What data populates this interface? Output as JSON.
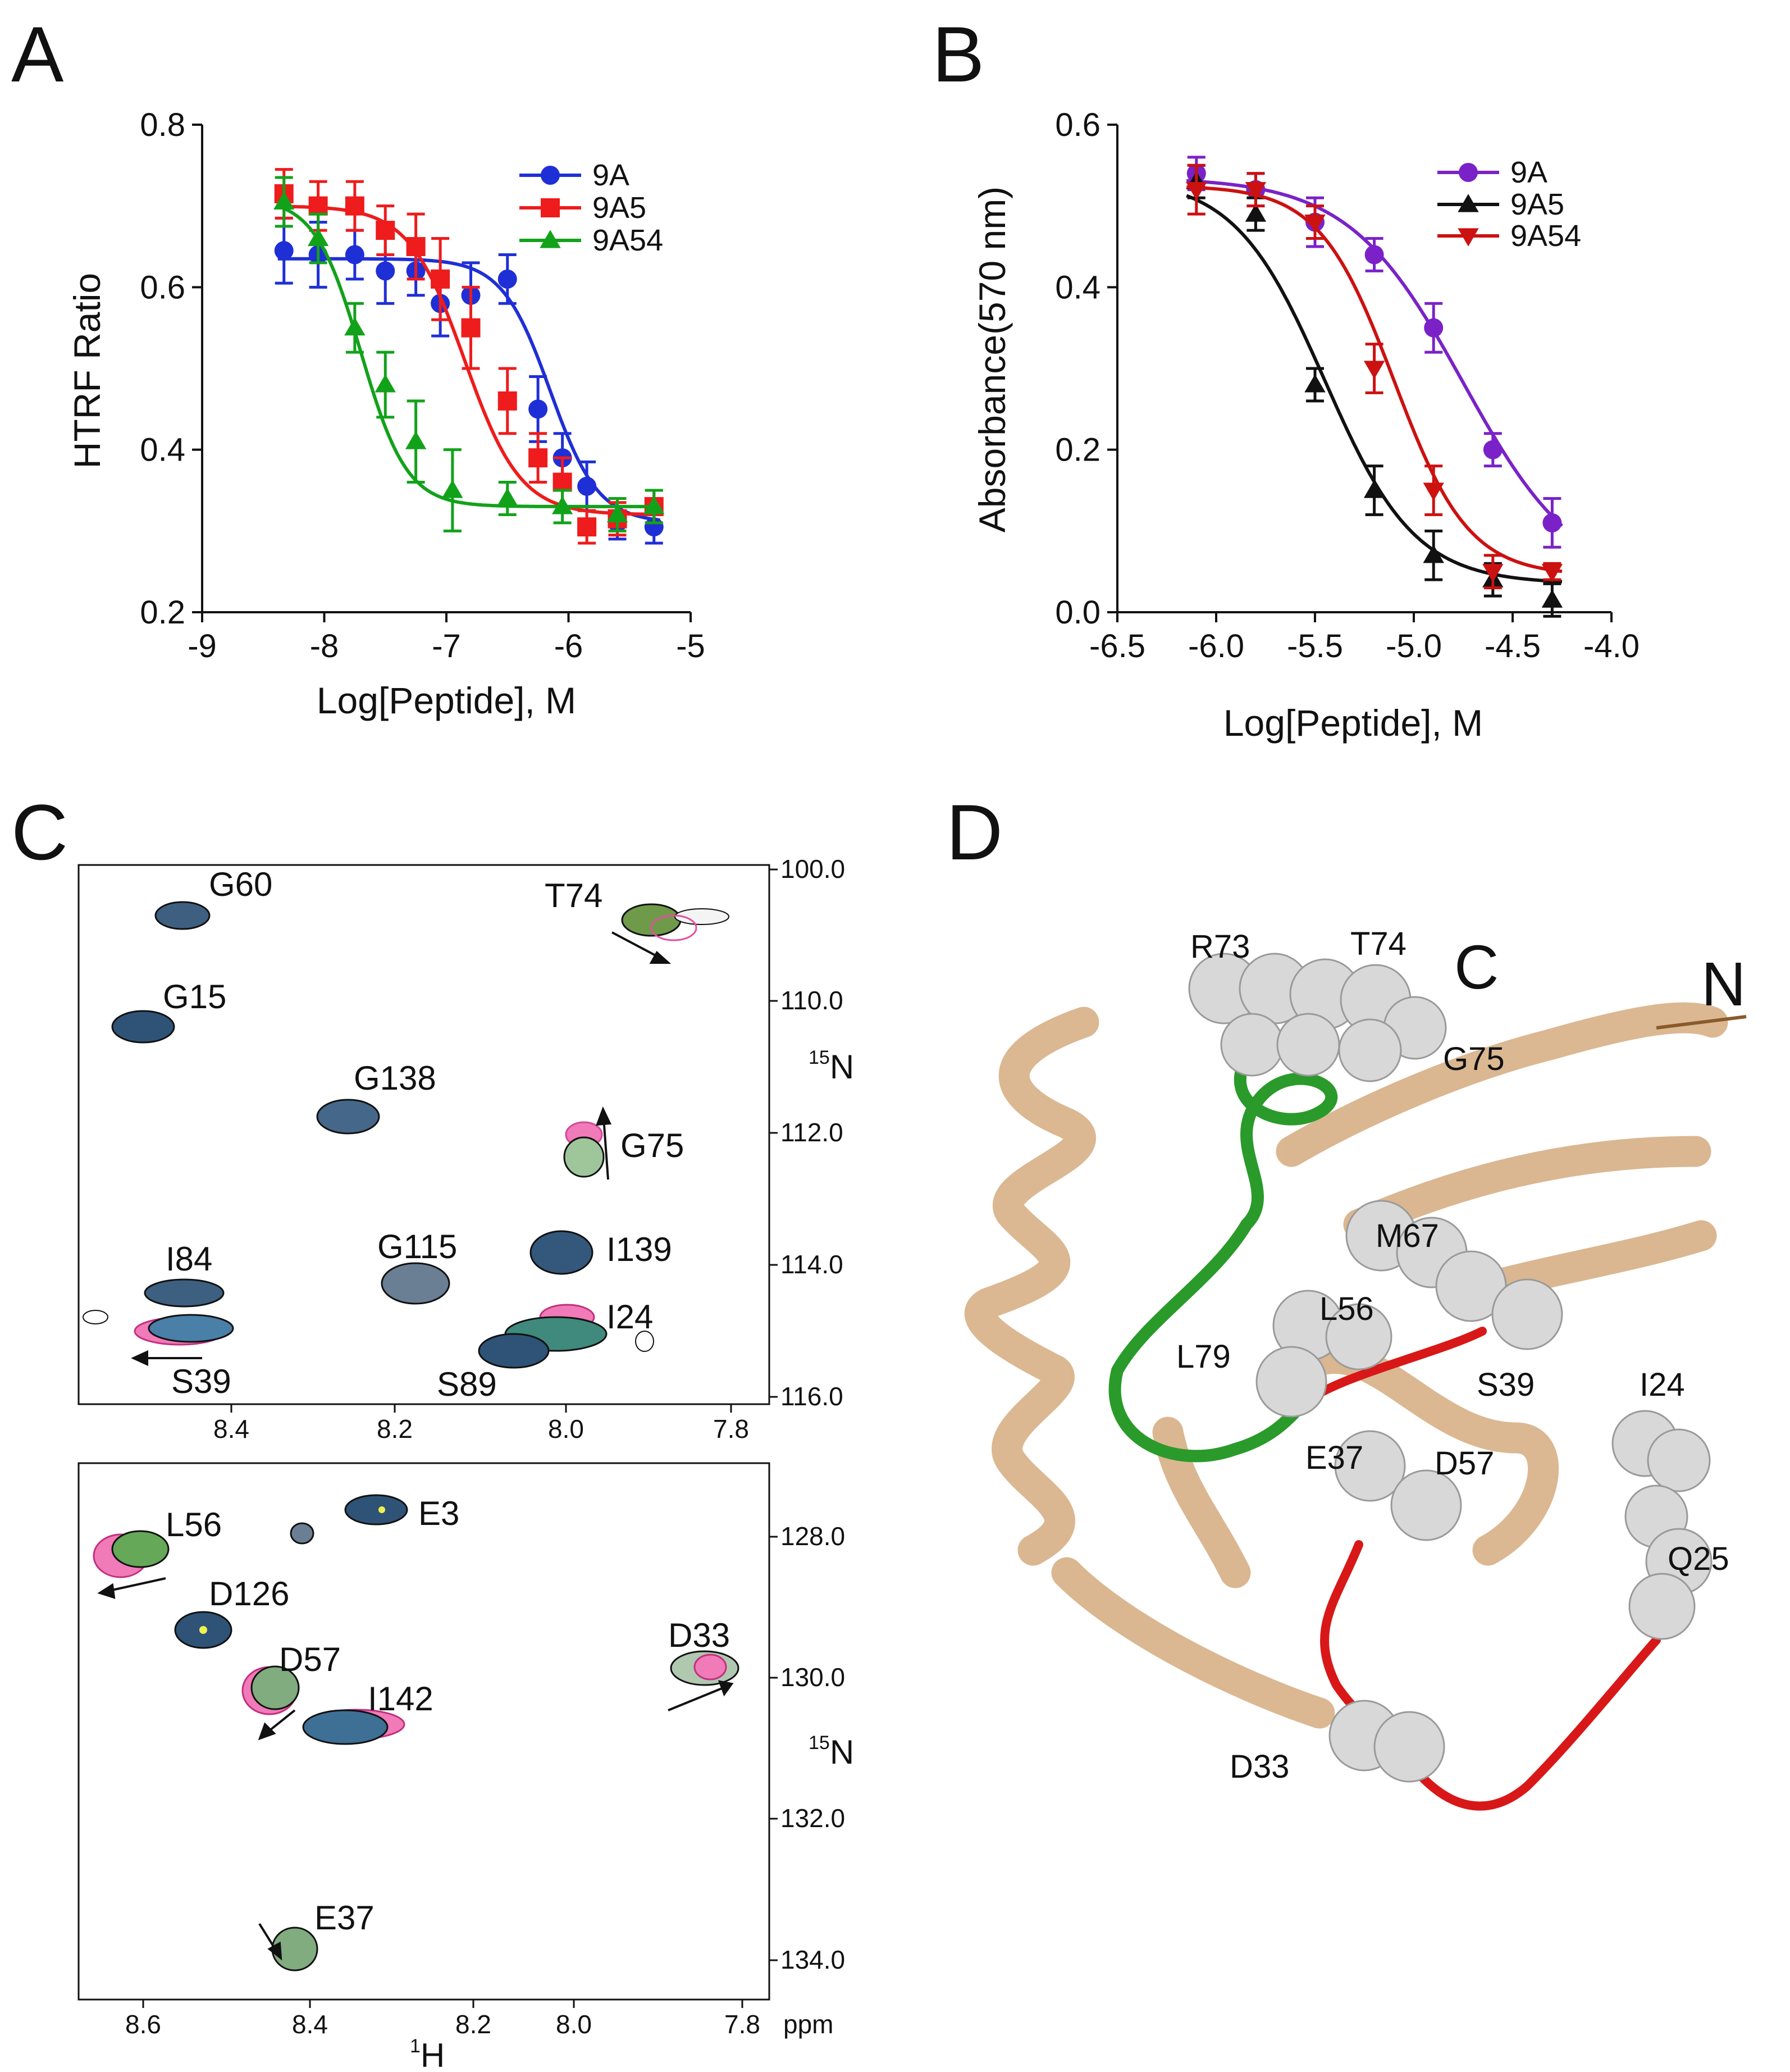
{
  "panels": {
    "A": "A",
    "B": "B",
    "C": "C",
    "D": "D"
  },
  "colors": {
    "9A_A": "#1f2fd6",
    "9A5_A": "#ee1c1c",
    "9A54_A": "#12a21a",
    "9A_B": "#7a22c8",
    "9A5_B": "#111111",
    "9A54_B": "#cc1111",
    "protein_tan": "#d9b48c",
    "loop_green": "#2a9a2a",
    "loop_red": "#d81818",
    "sphere": "#d8d8d8"
  },
  "chart_data": [
    {
      "panel": "A",
      "type": "scatter",
      "ylabel": "HTRF Ratio",
      "xlabel": "Log[Peptide], M",
      "xlim": [
        -9,
        -5
      ],
      "ylim": [
        0.2,
        0.8
      ],
      "xticks": [
        "-9",
        "-8",
        "-7",
        "-6",
        "-5"
      ],
      "yticks": [
        "0.2",
        "0.4",
        "0.6",
        "0.8"
      ],
      "legend_position": "top-right",
      "series": [
        {
          "name": "9A",
          "marker": "circle",
          "x": [
            -8.33,
            -8.05,
            -7.75,
            -7.5,
            -7.25,
            -7.05,
            -6.8,
            -6.5,
            -6.25,
            -6.05,
            -5.85,
            -5.6,
            -5.3
          ],
          "y": [
            0.645,
            0.64,
            0.64,
            0.62,
            0.62,
            0.58,
            0.59,
            0.61,
            0.45,
            0.39,
            0.355,
            0.31,
            0.305
          ],
          "err": [
            0.04,
            0.04,
            0.03,
            0.04,
            0.03,
            0.04,
            0.04,
            0.03,
            0.04,
            0.03,
            0.03,
            0.02,
            0.02
          ],
          "fit": {
            "top": 0.635,
            "bottom": 0.31,
            "logIC50": -6.15,
            "hill": 2.2
          }
        },
        {
          "name": "9A5",
          "marker": "square",
          "x": [
            -8.33,
            -8.05,
            -7.75,
            -7.5,
            -7.25,
            -7.05,
            -6.8,
            -6.5,
            -6.25,
            -6.05,
            -5.85,
            -5.6,
            -5.3
          ],
          "y": [
            0.715,
            0.7,
            0.7,
            0.67,
            0.65,
            0.61,
            0.55,
            0.46,
            0.39,
            0.36,
            0.305,
            0.315,
            0.33
          ],
          "err": [
            0.03,
            0.03,
            0.03,
            0.03,
            0.04,
            0.05,
            0.05,
            0.04,
            0.03,
            0.03,
            0.02,
            0.02,
            0.02
          ],
          "fit": {
            "top": 0.7,
            "bottom": 0.32,
            "logIC50": -6.85,
            "hill": 1.9
          }
        },
        {
          "name": "9A54",
          "marker": "triangle",
          "x": [
            -8.33,
            -8.05,
            -7.75,
            -7.5,
            -7.25,
            -6.95,
            -6.5,
            -6.05,
            -5.6,
            -5.3
          ],
          "y": [
            0.705,
            0.66,
            0.55,
            0.48,
            0.41,
            0.35,
            0.34,
            0.33,
            0.32,
            0.33
          ],
          "err": [
            0.03,
            0.03,
            0.03,
            0.04,
            0.05,
            0.05,
            0.02,
            0.02,
            0.02,
            0.02
          ],
          "fit": {
            "top": 0.71,
            "bottom": 0.33,
            "logIC50": -7.7,
            "hill": 2.3
          }
        }
      ]
    },
    {
      "panel": "B",
      "type": "scatter",
      "ylabel": "Absorbance(570 nm)",
      "xlabel": "Log[Peptide], M",
      "xlim": [
        -6.5,
        -4.0
      ],
      "ylim": [
        0.0,
        0.6
      ],
      "xticks": [
        "-6.5",
        "-6.0",
        "-5.5",
        "-5.0",
        "-4.5",
        "-4.0"
      ],
      "yticks": [
        "0.0",
        "0.2",
        "0.4",
        "0.6"
      ],
      "legend_position": "top-right",
      "series": [
        {
          "name": "9A",
          "marker": "circle",
          "x": [
            -6.1,
            -5.8,
            -5.5,
            -5.2,
            -4.9,
            -4.6,
            -4.3
          ],
          "y": [
            0.54,
            0.52,
            0.48,
            0.44,
            0.35,
            0.2,
            0.11
          ],
          "err": [
            0.02,
            0.02,
            0.03,
            0.02,
            0.03,
            0.02,
            0.03
          ],
          "fit": {
            "top": 0.535,
            "bottom": 0.03,
            "logIC50": -4.75,
            "hill": 1.5
          }
        },
        {
          "name": "9A5",
          "marker": "triangle",
          "x": [
            -6.1,
            -5.8,
            -5.5,
            -5.2,
            -4.9,
            -4.6,
            -4.3
          ],
          "y": [
            0.53,
            0.49,
            0.28,
            0.15,
            0.07,
            0.04,
            0.015
          ],
          "err": [
            0.02,
            0.02,
            0.02,
            0.03,
            0.03,
            0.02,
            0.02
          ],
          "fit": {
            "top": 0.535,
            "bottom": 0.035,
            "logIC50": -5.45,
            "hill": 1.9
          }
        },
        {
          "name": "9A54",
          "marker": "triangle-down",
          "x": [
            -6.1,
            -5.8,
            -5.5,
            -5.2,
            -4.9,
            -4.6,
            -4.3
          ],
          "y": [
            0.52,
            0.52,
            0.48,
            0.3,
            0.15,
            0.05,
            0.05
          ],
          "err": [
            0.03,
            0.02,
            0.02,
            0.03,
            0.03,
            0.02,
            0.01
          ],
          "fit": {
            "top": 0.525,
            "bottom": 0.045,
            "logIC50": -5.1,
            "hill": 2.3
          }
        }
      ]
    }
  ],
  "nmr": {
    "h_axis_label": "1H",
    "h_axis_sup": "1",
    "h_axis_letter": "H",
    "ppm_label": "ppm",
    "n_axis_label": "15N",
    "n_axis_sup": "15",
    "n_axis_letter": "N",
    "h_ticks_top": [
      "8.4",
      "8.2",
      "8.0",
      "7.8"
    ],
    "h_ticks_bottom": [
      "8.6",
      "8.4",
      "8.2",
      "8.0",
      "7.8"
    ],
    "n_ticks_top": [
      "100.0",
      "110.0",
      "112.0",
      "114.0",
      "116.0"
    ],
    "n_ticks_bottom": [
      "128.0",
      "130.0",
      "132.0",
      "134.0"
    ],
    "peaks_top": [
      "G60",
      "T74",
      "G15",
      "G138",
      "G75",
      "G115",
      "I139",
      "I84",
      "I24",
      "S39",
      "S89"
    ],
    "peaks_bottom": [
      "E3",
      "L56",
      "D126",
      "D57",
      "I142",
      "D33",
      "E37"
    ]
  },
  "structure": {
    "residues": [
      "R73",
      "T74",
      "G75",
      "M67",
      "L56",
      "L79",
      "S39",
      "I24",
      "E37",
      "D57",
      "Q25",
      "D33"
    ],
    "termini": [
      "C",
      "N"
    ]
  }
}
